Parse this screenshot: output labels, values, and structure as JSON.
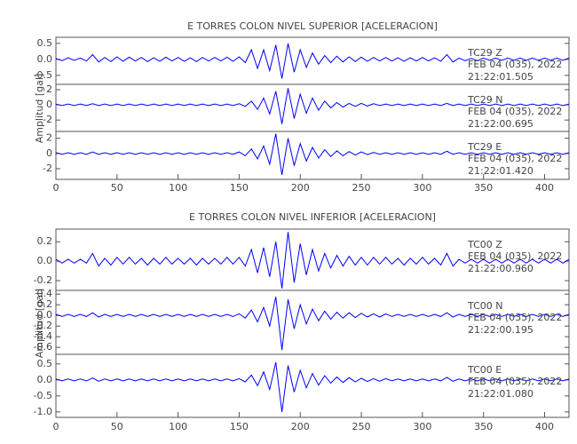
{
  "chart_data": [
    {
      "type": "line",
      "title": "E TORRES COLON NIVEL SUPERIOR [ACELERACION]",
      "y_label": "Amplitud [gal]",
      "xlim": [
        0,
        420
      ],
      "xticks": [
        0,
        50,
        100,
        150,
        200,
        250,
        300,
        350,
        400
      ],
      "x": [
        0,
        5,
        10,
        15,
        20,
        25,
        30,
        35,
        40,
        45,
        50,
        55,
        60,
        65,
        70,
        75,
        80,
        85,
        90,
        95,
        100,
        105,
        110,
        115,
        120,
        125,
        130,
        135,
        140,
        145,
        150,
        155,
        160,
        165,
        170,
        175,
        180,
        185,
        190,
        195,
        200,
        205,
        210,
        215,
        220,
        225,
        230,
        235,
        240,
        245,
        250,
        255,
        260,
        265,
        270,
        275,
        280,
        285,
        290,
        295,
        300,
        305,
        310,
        315,
        320,
        325,
        330,
        335,
        340,
        345,
        350,
        355,
        360,
        365,
        370,
        375,
        380,
        385,
        390,
        395,
        400,
        405,
        410,
        415,
        420
      ],
      "series": [
        {
          "name": "TC29  Z",
          "date": "FEB 04 (035), 2022",
          "time": "21:22:01.505",
          "color": "#0000ff",
          "ylim": [
            -0.78,
            0.69
          ],
          "yticks": [
            0.5,
            {
              "value": 0,
              "label": "0.0"
            },
            -0.5
          ],
          "values": [
            0.03,
            -0.04,
            0.05,
            -0.03,
            0.04,
            -0.05,
            0.15,
            -0.08,
            0.06,
            -0.07,
            0.08,
            -0.06,
            0.07,
            -0.05,
            0.06,
            -0.07,
            0.05,
            -0.06,
            0.07,
            -0.05,
            0.06,
            -0.06,
            0.05,
            -0.07,
            0.06,
            -0.05,
            0.06,
            -0.05,
            0.07,
            -0.06,
            0.08,
            -0.1,
            0.3,
            -0.28,
            0.3,
            -0.35,
            0.45,
            -0.6,
            0.5,
            -0.4,
            0.3,
            -0.25,
            0.2,
            -0.15,
            0.12,
            -0.1,
            0.1,
            -0.08,
            0.08,
            -0.07,
            0.07,
            -0.06,
            0.06,
            -0.05,
            0.06,
            -0.05,
            0.05,
            -0.06,
            0.05,
            -0.05,
            0.06,
            -0.05,
            0.05,
            -0.06,
            0.15,
            -0.08,
            0.04,
            -0.04,
            0.03,
            -0.04,
            0.04,
            -0.03,
            0.04,
            -0.03,
            0.04,
            -0.03,
            0.04,
            -0.03,
            0.04,
            -0.03,
            0.04,
            -0.03,
            0.04,
            -0.03,
            0.04
          ]
        },
        {
          "name": "TC29  N",
          "date": "FEB 04 (035), 2022",
          "time": "21:22:00.695",
          "color": "#0000ff",
          "ylim": [
            -3.5,
            2.7
          ],
          "yticks": [
            2,
            0,
            -2
          ],
          "values": [
            0.1,
            -0.1,
            0.1,
            -0.1,
            0.1,
            -0.1,
            0.15,
            -0.1,
            0.1,
            -0.1,
            0.1,
            -0.1,
            0.1,
            -0.1,
            0.1,
            -0.1,
            0.1,
            -0.1,
            0.1,
            -0.1,
            0.1,
            -0.1,
            0.1,
            -0.1,
            0.1,
            -0.1,
            0.1,
            -0.1,
            0.1,
            -0.1,
            0.15,
            -0.2,
            0.5,
            -0.6,
            0.9,
            -1.2,
            1.8,
            -2.5,
            2.2,
            -1.8,
            1.4,
            -1.1,
            0.9,
            -0.7,
            0.5,
            -0.4,
            0.3,
            -0.3,
            0.2,
            -0.2,
            0.2,
            -0.15,
            0.15,
            -0.1,
            0.1,
            -0.1,
            0.1,
            -0.1,
            0.1,
            -0.1,
            0.1,
            -0.1,
            0.1,
            -0.1,
            0.2,
            -0.1,
            0.1,
            -0.1,
            0.1,
            -0.1,
            0.1,
            -0.1,
            0.1,
            -0.1,
            0.1,
            -0.1,
            0.1,
            -0.1,
            0.1,
            -0.1,
            0.1,
            -0.1,
            0.1,
            -0.1,
            0.1
          ]
        },
        {
          "name": "TC29  E",
          "date": "FEB 04 (035), 2022",
          "time": "21:22:01.420",
          "color": "#0000ff",
          "ylim": [
            -3.4,
            2.9
          ],
          "yticks": [
            2,
            0,
            -2
          ],
          "values": [
            0.1,
            -0.1,
            0.1,
            -0.1,
            0.1,
            -0.1,
            0.2,
            -0.1,
            0.1,
            -0.1,
            0.1,
            -0.1,
            0.1,
            -0.1,
            0.1,
            -0.1,
            0.1,
            -0.1,
            0.1,
            -0.1,
            0.1,
            -0.1,
            0.1,
            -0.1,
            0.1,
            -0.1,
            0.1,
            -0.1,
            0.1,
            -0.1,
            0.2,
            -0.3,
            0.6,
            -0.7,
            1.0,
            -1.4,
            2.6,
            -2.8,
            2.0,
            -1.6,
            1.3,
            -1.0,
            0.8,
            -0.6,
            0.5,
            -0.4,
            0.35,
            -0.3,
            0.25,
            -0.2,
            0.2,
            -0.15,
            0.15,
            -0.1,
            0.1,
            -0.1,
            0.1,
            -0.1,
            0.1,
            -0.1,
            0.1,
            -0.1,
            0.1,
            -0.1,
            0.3,
            -0.1,
            0.1,
            -0.1,
            0.1,
            -0.1,
            0.1,
            -0.1,
            0.1,
            -0.1,
            0.1,
            -0.1,
            0.1,
            -0.1,
            0.1,
            -0.1,
            0.1,
            -0.1,
            0.1,
            -0.1,
            0.1
          ]
        }
      ]
    },
    {
      "type": "line",
      "title": "E TORRES COLON NIVEL INFERIOR [ACELERACION]",
      "y_label": "Amplitud [gal]",
      "xlim": [
        0,
        420
      ],
      "xticks": [
        0,
        50,
        100,
        150,
        200,
        250,
        300,
        350,
        400
      ],
      "x": [
        0,
        5,
        10,
        15,
        20,
        25,
        30,
        35,
        40,
        45,
        50,
        55,
        60,
        65,
        70,
        75,
        80,
        85,
        90,
        95,
        100,
        105,
        110,
        115,
        120,
        125,
        130,
        135,
        140,
        145,
        150,
        155,
        160,
        165,
        170,
        175,
        180,
        185,
        190,
        195,
        200,
        205,
        210,
        215,
        220,
        225,
        230,
        235,
        240,
        245,
        250,
        255,
        260,
        265,
        270,
        275,
        280,
        285,
        290,
        295,
        300,
        305,
        310,
        315,
        320,
        325,
        330,
        335,
        340,
        345,
        350,
        355,
        360,
        365,
        370,
        375,
        380,
        385,
        390,
        395,
        400,
        405,
        410,
        415,
        420
      ],
      "series": [
        {
          "name": "TC00  Z",
          "date": "FEB 04 (035), 2022",
          "time": "21:22:00.960",
          "color": "#0000ff",
          "ylim": [
            -0.3,
            0.33
          ],
          "yticks": [
            0.2,
            {
              "value": 0,
              "label": "0.0"
            },
            -0.2
          ],
          "values": [
            0.02,
            -0.02,
            0.02,
            -0.02,
            0.02,
            -0.02,
            0.08,
            -0.05,
            0.03,
            -0.04,
            0.04,
            -0.03,
            0.04,
            -0.03,
            0.03,
            -0.04,
            0.03,
            -0.03,
            0.04,
            -0.03,
            0.03,
            -0.03,
            0.03,
            -0.04,
            0.03,
            -0.03,
            0.03,
            -0.03,
            0.04,
            -0.03,
            0.04,
            -0.05,
            0.12,
            -0.12,
            0.14,
            -0.16,
            0.2,
            -0.28,
            0.3,
            -0.22,
            0.18,
            -0.14,
            0.12,
            -0.1,
            0.08,
            -0.07,
            0.06,
            -0.05,
            0.05,
            -0.04,
            0.04,
            -0.04,
            0.04,
            -0.03,
            0.04,
            -0.03,
            0.03,
            -0.04,
            0.03,
            -0.03,
            0.04,
            -0.03,
            0.03,
            -0.04,
            0.08,
            -0.05,
            0.02,
            -0.02,
            0.02,
            -0.02,
            0.02,
            -0.02,
            0.02,
            -0.02,
            0.02,
            -0.02,
            0.02,
            -0.02,
            0.02,
            -0.02,
            0.02,
            -0.02,
            0.02,
            -0.02,
            0.02
          ]
        },
        {
          "name": "TC00  N",
          "date": "FEB 04 (035), 2022",
          "time": "21:22:00.195",
          "color": "#0000ff",
          "ylim": [
            -0.73,
            0.47
          ],
          "yticks": [
            0.4,
            0.2,
            {
              "value": 0,
              "label": "0.0"
            },
            -0.2,
            -0.4,
            -0.6
          ],
          "values": [
            0.02,
            -0.02,
            0.02,
            -0.02,
            0.02,
            -0.02,
            0.05,
            -0.03,
            0.02,
            -0.02,
            0.02,
            -0.02,
            0.02,
            -0.02,
            0.02,
            -0.02,
            0.02,
            -0.02,
            0.02,
            -0.02,
            0.02,
            -0.02,
            0.02,
            -0.02,
            0.02,
            -0.02,
            0.02,
            -0.02,
            0.02,
            -0.02,
            0.03,
            -0.05,
            0.1,
            -0.12,
            0.15,
            -0.2,
            0.35,
            -0.65,
            0.3,
            -0.25,
            0.2,
            -0.16,
            0.12,
            -0.1,
            0.08,
            -0.07,
            0.06,
            -0.05,
            0.05,
            -0.04,
            0.04,
            -0.03,
            0.03,
            -0.03,
            0.03,
            -0.02,
            0.02,
            -0.02,
            0.02,
            -0.02,
            0.02,
            -0.02,
            0.02,
            -0.02,
            0.05,
            -0.03,
            0.02,
            -0.02,
            0.02,
            -0.02,
            0.02,
            -0.02,
            0.02,
            -0.02,
            0.02,
            -0.02,
            0.02,
            -0.02,
            0.02,
            -0.02,
            0.02,
            -0.02,
            0.02,
            -0.02,
            0.02
          ]
        },
        {
          "name": "TC00  E",
          "date": "FEB 04 (035), 2022",
          "time": "21:22:01.080",
          "color": "#0000ff",
          "ylim": [
            -1.17,
            0.8
          ],
          "yticks": [
            0.5,
            {
              "value": 0,
              "label": "0.0"
            },
            -0.5,
            {
              "value": -1,
              "label": "-1.0"
            }
          ],
          "values": [
            0.03,
            -0.03,
            0.03,
            -0.03,
            0.03,
            -0.03,
            0.06,
            -0.04,
            0.03,
            -0.03,
            0.03,
            -0.03,
            0.03,
            -0.03,
            0.03,
            -0.03,
            0.03,
            -0.03,
            0.03,
            -0.03,
            0.03,
            -0.03,
            0.03,
            -0.03,
            0.03,
            -0.03,
            0.03,
            -0.03,
            0.03,
            -0.03,
            0.04,
            -0.06,
            0.15,
            -0.18,
            0.25,
            -0.3,
            0.55,
            -1.0,
            0.45,
            -0.38,
            0.3,
            -0.25,
            0.2,
            -0.16,
            0.13,
            -0.1,
            0.09,
            -0.08,
            0.07,
            -0.06,
            0.05,
            -0.05,
            0.04,
            -0.04,
            0.04,
            -0.03,
            0.03,
            -0.03,
            0.03,
            -0.03,
            0.03,
            -0.03,
            0.03,
            -0.03,
            0.08,
            -0.04,
            0.03,
            -0.03,
            0.03,
            -0.03,
            0.03,
            -0.03,
            0.03,
            -0.03,
            0.03,
            -0.03,
            0.03,
            -0.03,
            0.03,
            -0.03,
            0.03,
            -0.03,
            0.03,
            -0.03,
            0.03
          ]
        }
      ]
    }
  ]
}
